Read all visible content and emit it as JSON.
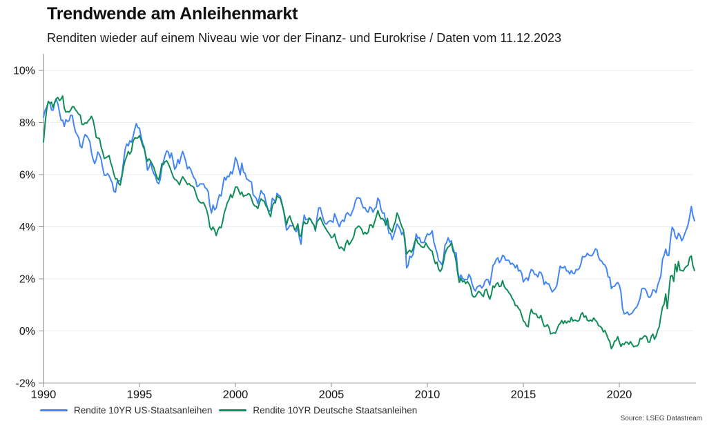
{
  "source": "Source: LSEG Datastream",
  "colors": {
    "us_line": "#4285f4",
    "de_line": "#0f8c57",
    "grid": "#ebebeb",
    "axis": "#8c8c8c",
    "text": "#141414"
  },
  "chart_data": {
    "type": "line",
    "title": "Trendwende am Anleihenmarkt",
    "subtitle": "Renditen wieder auf einem Niveau wie vor der Finanz- und Eurokrise / Daten vom 11.12.2023",
    "x_start_year": 1990,
    "x_step": "monthly",
    "xlim": [
      1990,
      2023.94
    ],
    "ylim": [
      -2,
      10.5
    ],
    "x_ticks": [
      1990,
      1995,
      2000,
      2005,
      2010,
      2015,
      2020
    ],
    "y_ticks": [
      10,
      8,
      6,
      4,
      2,
      0,
      -2
    ],
    "y_unit": "%",
    "grid": "horizontal",
    "legend_position": "bottom",
    "series": [
      {
        "name": "Rendite 10YR US-Staatsanleihen",
        "color": "#4285f4",
        "values": [
          8.21,
          8.47,
          8.59,
          8.79,
          8.76,
          8.48,
          8.47,
          8.75,
          8.89,
          8.72,
          8.39,
          8.08,
          8.09,
          7.85,
          8.11,
          8.04,
          8.07,
          8.28,
          8.27,
          7.9,
          7.65,
          7.53,
          7.42,
          7.09,
          7.03,
          7.34,
          7.54,
          7.48,
          7.39,
          7.26,
          6.84,
          6.59,
          6.42,
          6.59,
          6.87,
          6.77,
          6.6,
          6.26,
          5.98,
          5.97,
          6.04,
          5.96,
          5.81,
          5.68,
          5.36,
          5.33,
          5.72,
          5.77,
          5.75,
          5.97,
          6.48,
          6.97,
          7.18,
          7.1,
          7.3,
          7.24,
          7.46,
          7.74,
          7.96,
          7.81,
          7.78,
          7.47,
          7.2,
          7.06,
          6.63,
          6.17,
          6.28,
          6.49,
          6.2,
          6.04,
          5.93,
          5.71,
          5.65,
          5.81,
          6.27,
          6.51,
          6.74,
          6.91,
          6.87,
          6.64,
          6.83,
          6.53,
          6.2,
          6.3,
          6.58,
          6.42,
          6.69,
          6.89,
          6.71,
          6.49,
          6.22,
          6.3,
          6.21,
          6.03,
          5.88,
          5.81,
          5.54,
          5.57,
          5.65,
          5.64,
          5.65,
          5.5,
          5.46,
          5.34,
          4.81,
          4.53,
          4.83,
          4.65,
          4.72,
          5.0,
          5.23,
          5.18,
          5.54,
          5.9,
          5.79,
          5.94,
          5.92,
          6.11,
          6.03,
          6.28,
          6.66,
          6.52,
          6.26,
          5.99,
          6.44,
          6.1,
          6.05,
          5.83,
          5.8,
          5.74,
          5.72,
          5.24,
          5.16,
          5.1,
          4.89,
          5.14,
          5.39,
          5.28,
          5.24,
          4.97,
          4.73,
          4.57,
          4.65,
          5.09,
          5.04,
          4.91,
          5.28,
          5.21,
          5.16,
          4.93,
          4.65,
          4.26,
          3.87,
          3.94,
          4.05,
          4.03,
          4.05,
          3.9,
          3.81,
          3.96,
          3.57,
          3.33,
          3.98,
          4.45,
          4.27,
          4.29,
          4.3,
          4.27,
          4.15,
          4.08,
          3.83,
          4.35,
          4.72,
          4.73,
          4.5,
          4.28,
          4.13,
          4.1,
          4.19,
          4.23,
          4.22,
          4.17,
          4.5,
          4.34,
          4.14,
          4.0,
          4.18,
          4.26,
          4.2,
          4.46,
          4.54,
          4.47,
          4.42,
          4.57,
          4.72,
          4.99,
          5.11,
          5.11,
          5.09,
          4.88,
          4.72,
          4.73,
          4.6,
          4.56,
          4.76,
          4.72,
          4.56,
          4.69,
          4.75,
          5.1,
          5.0,
          4.67,
          4.52,
          4.53,
          4.15,
          4.1,
          3.74,
          3.74,
          3.51,
          3.68,
          3.88,
          4.1,
          4.01,
          3.89,
          3.69,
          3.81,
          3.53,
          2.42,
          2.52,
          2.87,
          2.82,
          2.93,
          3.29,
          3.72,
          3.56,
          3.59,
          3.4,
          3.39,
          3.4,
          3.59,
          3.73,
          3.69,
          3.73,
          3.85,
          3.42,
          3.2,
          3.01,
          2.7,
          2.65,
          2.54,
          2.76,
          3.29,
          3.39,
          3.58,
          3.41,
          3.46,
          3.17,
          3.0,
          3.0,
          2.3,
          1.98,
          2.15,
          2.01,
          1.98,
          1.97,
          1.97,
          2.17,
          2.05,
          1.8,
          1.62,
          1.53,
          1.68,
          1.72,
          1.75,
          1.65,
          1.72,
          1.91,
          1.98,
          1.96,
          1.76,
          2.13,
          2.52,
          2.58,
          2.74,
          2.81,
          2.62,
          2.72,
          2.9,
          2.86,
          2.71,
          2.72,
          2.71,
          2.56,
          2.6,
          2.54,
          2.42,
          2.53,
          2.3,
          2.33,
          2.21,
          1.88,
          1.98,
          2.04,
          1.94,
          2.2,
          2.36,
          2.32,
          2.17,
          2.17,
          2.07,
          2.26,
          2.24,
          2.09,
          1.78,
          1.89,
          1.81,
          1.81,
          1.64,
          1.5,
          1.56,
          1.63,
          1.76,
          2.14,
          2.49,
          2.43,
          2.42,
          2.48,
          2.3,
          2.3,
          2.19,
          2.32,
          2.21,
          2.2,
          2.36,
          2.35,
          2.4,
          2.58,
          2.86,
          2.84,
          2.87,
          2.98,
          2.91,
          2.89,
          2.89,
          3.0,
          3.15,
          3.12,
          2.83,
          2.71,
          2.68,
          2.57,
          2.53,
          2.4,
          2.07,
          2.06,
          1.63,
          1.7,
          1.71,
          1.81,
          1.86,
          1.76,
          1.5,
          0.87,
          0.66,
          0.67,
          0.73,
          0.62,
          0.65,
          0.68,
          0.79,
          0.87,
          0.93,
          1.08,
          1.26,
          1.61,
          1.64,
          1.62,
          1.52,
          1.32,
          1.28,
          1.37,
          1.58,
          1.56,
          1.47,
          1.76,
          1.93,
          2.13,
          2.75,
          2.9,
          3.14,
          2.9,
          2.9,
          3.52,
          3.98,
          3.89,
          3.62,
          3.53,
          3.75,
          3.66,
          3.46,
          3.57,
          3.75,
          3.9,
          4.09,
          4.38,
          4.78,
          4.42,
          4.23
        ]
      },
      {
        "name": "Rendite 10YR Deutsche Staatsanleihen",
        "color": "#0f8c57",
        "values": [
          7.25,
          7.95,
          8.5,
          8.81,
          8.73,
          8.78,
          8.57,
          8.78,
          8.92,
          8.96,
          8.84,
          8.9,
          9.02,
          8.55,
          8.4,
          8.42,
          8.4,
          8.48,
          8.61,
          8.6,
          8.49,
          8.41,
          8.32,
          8.28,
          7.93,
          7.92,
          7.99,
          7.97,
          8.07,
          8.13,
          8.24,
          8.09,
          7.8,
          7.43,
          7.4,
          7.39,
          7.07,
          6.87,
          6.62,
          6.65,
          6.69,
          6.73,
          6.47,
          6.28,
          6.02,
          5.83,
          5.84,
          5.65,
          5.6,
          5.92,
          6.27,
          6.55,
          6.7,
          6.89,
          6.79,
          6.9,
          7.28,
          7.41,
          7.4,
          7.41,
          7.5,
          7.33,
          7.12,
          6.98,
          6.71,
          6.51,
          6.61,
          6.52,
          6.4,
          6.28,
          6.06,
          5.89,
          5.8,
          6.06,
          6.42,
          6.39,
          6.5,
          6.53,
          6.42,
          6.28,
          6.11,
          5.93,
          5.82,
          5.79,
          5.71,
          5.61,
          5.79,
          5.92,
          5.83,
          5.73,
          5.62,
          5.66,
          5.58,
          5.56,
          5.51,
          5.33,
          5.12,
          5.0,
          4.93,
          4.91,
          4.93,
          4.8,
          4.64,
          4.4,
          3.99,
          3.88,
          3.99,
          3.87,
          3.66,
          3.87,
          3.99,
          3.96,
          4.2,
          4.53,
          4.72,
          4.93,
          5.04,
          5.24,
          5.12,
          5.29,
          5.52,
          5.53,
          5.4,
          5.24,
          5.33,
          5.16,
          5.2,
          5.21,
          5.27,
          5.24,
          5.09,
          4.89,
          4.8,
          4.78,
          4.7,
          4.92,
          5.07,
          5.01,
          4.98,
          4.81,
          4.72,
          4.51,
          4.39,
          4.79,
          4.91,
          4.93,
          5.19,
          5.13,
          5.1,
          4.87,
          4.66,
          4.36,
          4.08,
          4.32,
          4.41,
          4.21,
          4.08,
          3.88,
          3.94,
          4.11,
          3.68,
          3.62,
          4.04,
          4.19,
          4.11,
          4.13,
          4.34,
          4.29,
          4.15,
          4.07,
          3.88,
          4.19,
          4.27,
          4.36,
          4.22,
          4.08,
          3.98,
          3.87,
          3.78,
          3.69,
          3.58,
          3.61,
          3.72,
          3.47,
          3.31,
          3.16,
          3.22,
          3.17,
          3.08,
          3.36,
          3.48,
          3.31,
          3.39,
          3.5,
          3.63,
          3.92,
          3.97,
          4.03,
          3.98,
          3.89,
          3.71,
          3.79,
          3.72,
          3.79,
          4.07,
          4.07,
          3.97,
          4.18,
          4.39,
          4.62,
          4.43,
          4.3,
          4.32,
          4.23,
          4.06,
          4.32,
          3.98,
          3.89,
          3.8,
          4.04,
          4.2,
          4.53,
          4.4,
          4.19,
          4.01,
          3.88,
          3.37,
          2.95,
          3.04,
          3.1,
          3.02,
          3.14,
          3.4,
          3.54,
          3.38,
          3.33,
          3.25,
          3.21,
          3.21,
          3.38,
          3.26,
          3.17,
          3.1,
          3.06,
          2.78,
          2.58,
          2.64,
          2.38,
          2.28,
          2.38,
          2.64,
          2.96,
          3.13,
          3.22,
          3.27,
          3.38,
          3.07,
          2.96,
          2.66,
          2.19,
          1.86,
          2.02,
          1.88,
          1.93,
          1.82,
          1.9,
          1.81,
          1.68,
          1.37,
          1.3,
          1.32,
          1.42,
          1.52,
          1.48,
          1.39,
          1.32,
          1.56,
          1.6,
          1.38,
          1.22,
          1.41,
          1.73,
          1.67,
          1.8,
          1.85,
          1.7,
          1.72,
          1.93,
          1.72,
          1.62,
          1.57,
          1.47,
          1.39,
          1.25,
          1.16,
          0.98,
          0.97,
          0.87,
          0.79,
          0.59,
          0.39,
          0.33,
          0.2,
          0.16,
          0.61,
          0.83,
          0.69,
          0.66,
          0.66,
          0.52,
          0.5,
          0.6,
          0.36,
          0.18,
          0.18,
          0.24,
          0.14,
          -0.11,
          -0.09,
          -0.07,
          -0.09,
          0.05,
          0.22,
          0.29,
          0.4,
          0.28,
          0.39,
          0.3,
          0.38,
          0.34,
          0.52,
          0.38,
          0.42,
          0.4,
          0.37,
          0.42,
          0.63,
          0.7,
          0.53,
          0.58,
          0.41,
          0.38,
          0.42,
          0.37,
          0.5,
          0.41,
          0.35,
          0.2,
          0.18,
          0.12,
          -0.04,
          0.02,
          -0.13,
          -0.3,
          -0.4,
          -0.68,
          -0.58,
          -0.39,
          -0.36,
          -0.22,
          -0.42,
          -0.6,
          -0.49,
          -0.52,
          -0.42,
          -0.44,
          -0.51,
          -0.41,
          -0.51,
          -0.61,
          -0.58,
          -0.58,
          -0.51,
          -0.29,
          -0.31,
          -0.23,
          -0.18,
          -0.22,
          -0.43,
          -0.43,
          -0.21,
          -0.12,
          -0.32,
          -0.19,
          0.02,
          0.17,
          0.57,
          0.92,
          1.03,
          1.42,
          0.85,
          1.51,
          2.1,
          2.13,
          1.9,
          2.56,
          2.27,
          2.67,
          2.33,
          2.32,
          2.3,
          2.42,
          2.48,
          2.53,
          2.82,
          2.88,
          2.5,
          2.32
        ]
      }
    ]
  }
}
